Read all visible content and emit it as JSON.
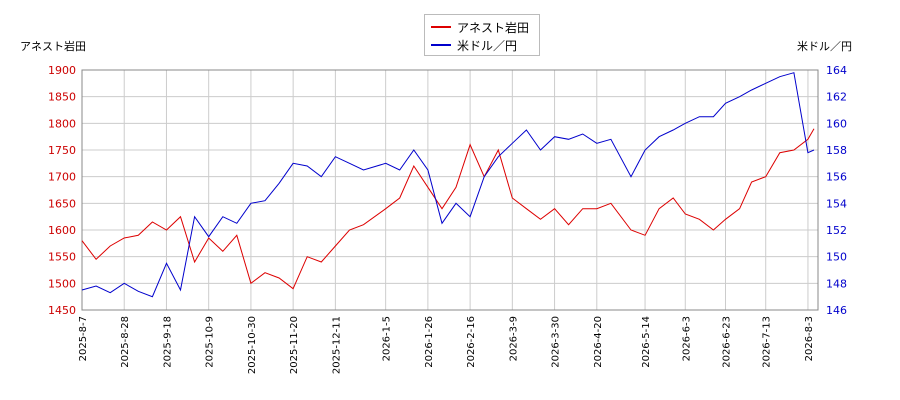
{
  "chart_data": {
    "type": "line",
    "legend_position": "top-center",
    "grid": true,
    "ylabel_left": "アネスト岩田",
    "ylabel_right": "米ドル／円",
    "ylim_left": [
      1450,
      1900
    ],
    "ylim_right": [
      146,
      164
    ],
    "yticks_left": [
      "1450",
      "1500",
      "1550",
      "1600",
      "1650",
      "1700",
      "1750",
      "1800",
      "1850",
      "1900"
    ],
    "yticks_right": [
      "146",
      "148",
      "150",
      "152",
      "154",
      "156",
      "158",
      "160",
      "162",
      "164"
    ],
    "x_tick_labels": [
      "2025-8-7",
      "2025-8-28",
      "2025-9-18",
      "2025-10-9",
      "2025-10-30",
      "2025-11-20",
      "2025-12-11",
      "2026-1-5",
      "2026-1-26",
      "2026-2-16",
      "2026-3-9",
      "2026-3-30",
      "2026-4-20",
      "2026-5-14",
      "2026-6-3",
      "2026-6-23",
      "2026-7-13",
      "2026-8-3"
    ],
    "series": [
      {
        "name": "アネスト岩田",
        "axis": "left",
        "color": "#dd0000",
        "x": [
          "2025-8-7",
          "2025-8-14",
          "2025-8-21",
          "2025-8-28",
          "2025-9-4",
          "2025-9-11",
          "2025-9-18",
          "2025-9-25",
          "2025-10-2",
          "2025-10-9",
          "2025-10-16",
          "2025-10-23",
          "2025-10-30",
          "2025-11-6",
          "2025-11-13",
          "2025-11-20",
          "2025-11-27",
          "2025-12-4",
          "2025-12-11",
          "2025-12-18",
          "2025-12-25",
          "2026-1-5",
          "2026-1-12",
          "2026-1-19",
          "2026-1-26",
          "2026-2-2",
          "2026-2-9",
          "2026-2-16",
          "2026-2-23",
          "2026-3-2",
          "2026-3-9",
          "2026-3-16",
          "2026-3-23",
          "2026-3-30",
          "2026-4-6",
          "2026-4-13",
          "2026-4-20",
          "2026-4-27",
          "2026-5-7",
          "2026-5-14",
          "2026-5-21",
          "2026-5-28",
          "2026-6-3",
          "2026-6-10",
          "2026-6-17",
          "2026-6-23",
          "2026-6-30",
          "2026-7-6",
          "2026-7-13",
          "2026-7-20",
          "2026-7-27",
          "2026-8-3",
          "2026-8-6"
        ],
        "values": [
          1580,
          1545,
          1570,
          1585,
          1590,
          1615,
          1600,
          1625,
          1540,
          1585,
          1560,
          1590,
          1500,
          1520,
          1510,
          1490,
          1550,
          1540,
          1570,
          1600,
          1610,
          1640,
          1660,
          1720,
          1680,
          1640,
          1680,
          1760,
          1700,
          1750,
          1660,
          1640,
          1620,
          1640,
          1610,
          1640,
          1640,
          1650,
          1600,
          1590,
          1640,
          1660,
          1630,
          1620,
          1600,
          1620,
          1640,
          1690,
          1700,
          1745,
          1750,
          1770,
          1790
        ]
      },
      {
        "name": "米ドル／円",
        "axis": "right",
        "color": "#0000cc",
        "x": [
          "2025-8-7",
          "2025-8-14",
          "2025-8-21",
          "2025-8-28",
          "2025-9-4",
          "2025-9-11",
          "2025-9-18",
          "2025-9-25",
          "2025-10-2",
          "2025-10-9",
          "2025-10-16",
          "2025-10-23",
          "2025-10-30",
          "2025-11-6",
          "2025-11-13",
          "2025-11-20",
          "2025-11-27",
          "2025-12-4",
          "2025-12-11",
          "2025-12-18",
          "2025-12-25",
          "2026-1-5",
          "2026-1-12",
          "2026-1-19",
          "2026-1-26",
          "2026-2-2",
          "2026-2-9",
          "2026-2-16",
          "2026-2-23",
          "2026-3-2",
          "2026-3-9",
          "2026-3-16",
          "2026-3-23",
          "2026-3-30",
          "2026-4-6",
          "2026-4-13",
          "2026-4-20",
          "2026-4-27",
          "2026-5-7",
          "2026-5-14",
          "2026-5-21",
          "2026-5-28",
          "2026-6-3",
          "2026-6-10",
          "2026-6-17",
          "2026-6-23",
          "2026-6-30",
          "2026-7-6",
          "2026-7-13",
          "2026-7-20",
          "2026-7-27",
          "2026-8-3",
          "2026-8-6"
        ],
        "values": [
          147.5,
          147.8,
          147.3,
          148.0,
          147.4,
          147.0,
          149.5,
          147.5,
          153.0,
          151.5,
          153.0,
          152.5,
          154.0,
          154.2,
          155.5,
          157.0,
          156.8,
          156.0,
          157.5,
          157.0,
          156.5,
          157.0,
          156.5,
          158.0,
          156.5,
          152.5,
          154.0,
          153.0,
          156.0,
          157.5,
          158.5,
          159.5,
          158.0,
          159.0,
          158.8,
          159.2,
          158.5,
          158.8,
          156.0,
          158.0,
          159.0,
          159.5,
          160.0,
          160.5,
          160.5,
          161.5,
          162.0,
          162.5,
          163.0,
          163.5,
          163.8,
          157.8,
          158.0
        ]
      }
    ]
  }
}
